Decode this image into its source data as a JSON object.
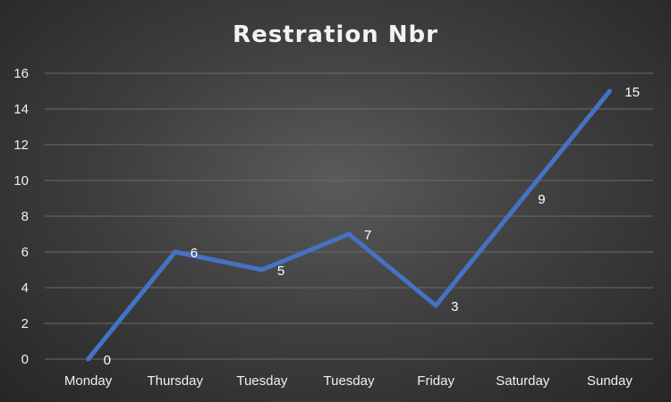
{
  "chart_data": {
    "type": "line",
    "title": "Restration Nbr",
    "categories": [
      "Monday",
      "Thursday",
      "Tuesday",
      "Tuesday",
      "Friday",
      "Saturday",
      "Sunday"
    ],
    "series": [
      {
        "values": [
          0,
          6,
          5,
          7,
          3,
          9,
          15
        ],
        "color": "#4472c4"
      }
    ],
    "ylim": [
      0,
      16
    ],
    "yticks": [
      0,
      2,
      4,
      6,
      8,
      10,
      12,
      14,
      16
    ],
    "grid": true,
    "data_labels": true
  }
}
